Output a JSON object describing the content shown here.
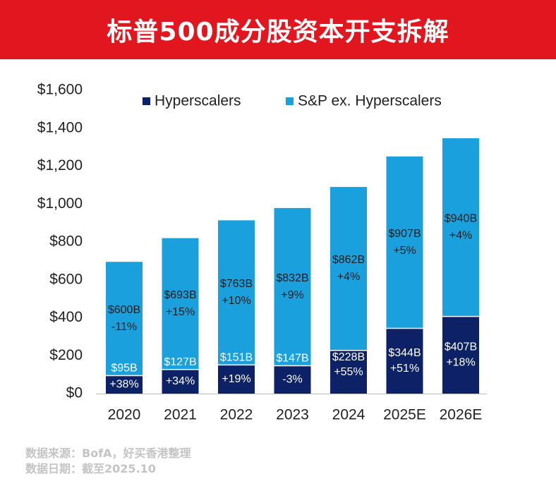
{
  "title": "标普500成分股资本开支拆解",
  "chart_data": {
    "type": "bar",
    "stacked": true,
    "categories": [
      "2020",
      "2021",
      "2022",
      "2023",
      "2024",
      "2025E",
      "2026E"
    ],
    "series": [
      {
        "name": "Hyperscalers",
        "color": "#0d2266",
        "values": [
          95,
          127,
          151,
          147,
          228,
          344,
          407
        ],
        "labels": [
          "$95B",
          "$127B",
          "$151B",
          "$147B",
          "$228B",
          "$344B",
          "$407B"
        ],
        "growth": [
          "+38%",
          "+34%",
          "+19%",
          "-3%",
          "+55%",
          "+51%",
          "+18%"
        ]
      },
      {
        "name": "S&P ex. Hyperscalers",
        "color": "#1aa0dc",
        "values": [
          600,
          693,
          763,
          832,
          862,
          907,
          940
        ],
        "labels": [
          "$600B",
          "$693B",
          "$763B",
          "$832B",
          "$862B",
          "$907B",
          "$940B"
        ],
        "growth": [
          "-11%",
          "+15%",
          "+10%",
          "+9%",
          "+4%",
          "+5%",
          "+4%"
        ]
      }
    ],
    "ylim": [
      0,
      1600
    ],
    "yticks": [
      0,
      200,
      400,
      600,
      800,
      1000,
      1200,
      1400,
      1600
    ],
    "ytick_labels": [
      "$0",
      "$200",
      "$400",
      "$600",
      "$800",
      "$1,000",
      "$1,200",
      "$1,400",
      "$1,600"
    ],
    "legend_position": "top",
    "grid": false,
    "xlabel": "",
    "ylabel": ""
  },
  "footer": {
    "source": "数据来源：BofA，好买香港整理",
    "date": "数据日期：截至2025.10"
  }
}
